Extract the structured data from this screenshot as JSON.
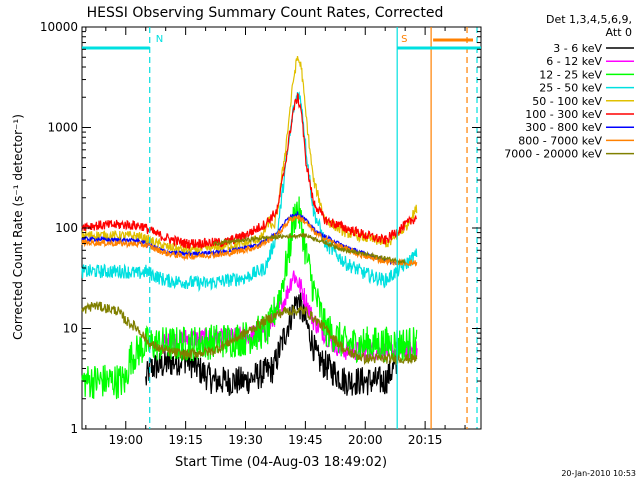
{
  "chart_data": {
    "type": "line",
    "title": "HESSI Observing Summary Count Rates, Corrected",
    "xlabel": "Start Time (04-Aug-03 18:49:02)",
    "ylabel": "Corrected Count Rate (s⁻¹ detector⁻¹)",
    "y_scale": "log",
    "ylim": [
      1,
      10000
    ],
    "xlim": [
      "18:49:02",
      "20:29:00"
    ],
    "x_ticks": [
      "19:00",
      "19:15",
      "19:30",
      "19:45",
      "20:00",
      "20:15"
    ],
    "y_ticks": [
      "1",
      "10",
      "100",
      "1000",
      "10000"
    ],
    "legend_header": "Det 1,3,4,5,6,9,",
    "legend_subheader": "Att 0",
    "timestamp": "20-Jan-2010 10:53",
    "flags": [
      {
        "label": "N",
        "start": "18:49:02",
        "end": "19:06:00",
        "color": "#00e0e0"
      },
      {
        "label": "S",
        "start": "20:08:00",
        "end": "20:29:00",
        "color": "#00e0e0"
      },
      {
        "label": "",
        "start": "20:17:00",
        "end": "20:27:00",
        "color": "#ff8000"
      }
    ],
    "markers": [
      {
        "time": "19:06:00",
        "color": "#00e0e0",
        "style": "dashed"
      },
      {
        "time": "20:08:00",
        "color": "#00e0e0",
        "style": "solid"
      },
      {
        "time": "20:28:00",
        "color": "#00e0e0",
        "style": "dashed"
      },
      {
        "time": "20:16:30",
        "color": "#ff8000",
        "style": "solid"
      },
      {
        "time": "20:25:30",
        "color": "#ff8000",
        "style": "dashed"
      }
    ],
    "series": [
      {
        "name": "3 - 6 keV",
        "color": "#000000",
        "noise": 0.15,
        "points": [
          [
            "19:05",
            3
          ],
          [
            "19:06",
            4
          ],
          [
            "19:15",
            5
          ],
          [
            "19:22",
            3
          ],
          [
            "19:30",
            3
          ],
          [
            "19:37",
            4
          ],
          [
            "19:41",
            12
          ],
          [
            "19:43",
            20
          ],
          [
            "19:45",
            12
          ],
          [
            "19:48",
            5
          ],
          [
            "19:55",
            3
          ],
          [
            "20:05",
            3
          ],
          [
            "20:07",
            4
          ],
          [
            "20:08",
            4
          ]
        ]
      },
      {
        "name": "6 - 12 keV",
        "color": "#ff00ff",
        "noise": 0.1,
        "points": [
          [
            "19:09",
            7
          ],
          [
            "19:15",
            8
          ],
          [
            "19:25",
            8
          ],
          [
            "19:35",
            9
          ],
          [
            "19:40",
            20
          ],
          [
            "19:42",
            35
          ],
          [
            "19:44",
            25
          ],
          [
            "19:47",
            12
          ],
          [
            "19:52",
            7
          ],
          [
            "19:55",
            6
          ],
          [
            "20:05",
            6
          ],
          [
            "20:13",
            6
          ]
        ]
      },
      {
        "name": "12 - 25 keV",
        "color": "#00ff00",
        "noise": 0.18,
        "points": [
          [
            "18:49:02",
            3
          ],
          [
            "19:00",
            3
          ],
          [
            "19:01",
            5
          ],
          [
            "19:05",
            7
          ],
          [
            "19:15",
            7
          ],
          [
            "19:30",
            8
          ],
          [
            "19:36",
            10
          ],
          [
            "19:39",
            25
          ],
          [
            "19:41",
            60
          ],
          [
            "19:42",
            120
          ],
          [
            "19:43",
            160
          ],
          [
            "19:44",
            110
          ],
          [
            "19:45",
            60
          ],
          [
            "19:47",
            25
          ],
          [
            "19:50",
            10
          ],
          [
            "19:55",
            7
          ],
          [
            "20:05",
            7
          ],
          [
            "20:13",
            7
          ]
        ]
      },
      {
        "name": "25 - 50 keV",
        "color": "#00e0e0",
        "noise": 0.07,
        "points": [
          [
            "18:49:02",
            37
          ],
          [
            "19:00",
            37
          ],
          [
            "19:03",
            35
          ],
          [
            "19:05",
            37
          ],
          [
            "19:10",
            30
          ],
          [
            "19:20",
            28
          ],
          [
            "19:30",
            32
          ],
          [
            "19:35",
            40
          ],
          [
            "19:38",
            90
          ],
          [
            "19:40",
            400
          ],
          [
            "19:42",
            1500
          ],
          [
            "19:43",
            2200
          ],
          [
            "19:44",
            1800
          ],
          [
            "19:45",
            700
          ],
          [
            "19:47",
            150
          ],
          [
            "19:50",
            70
          ],
          [
            "19:55",
            45
          ],
          [
            "20:00",
            35
          ],
          [
            "20:05",
            30
          ],
          [
            "20:09",
            40
          ],
          [
            "20:13",
            55
          ]
        ]
      },
      {
        "name": "50 - 100 keV",
        "color": "#e0c000",
        "noise": 0.05,
        "points": [
          [
            "18:49:02",
            85
          ],
          [
            "19:03",
            83
          ],
          [
            "19:06",
            75
          ],
          [
            "19:10",
            65
          ],
          [
            "19:15",
            60
          ],
          [
            "19:20",
            62
          ],
          [
            "19:30",
            70
          ],
          [
            "19:34",
            80
          ],
          [
            "19:36",
            120
          ],
          [
            "19:37",
            95
          ],
          [
            "19:38",
            150
          ],
          [
            "19:40",
            600
          ],
          [
            "19:42",
            3000
          ],
          [
            "19:43",
            5000
          ],
          [
            "19:44",
            4000
          ],
          [
            "19:45",
            1500
          ],
          [
            "19:47",
            300
          ],
          [
            "19:50",
            120
          ],
          [
            "19:55",
            90
          ],
          [
            "20:00",
            80
          ],
          [
            "20:06",
            70
          ],
          [
            "20:10",
            100
          ],
          [
            "20:13",
            160
          ]
        ]
      },
      {
        "name": "100 - 300 keV",
        "color": "#ff0000",
        "noise": 0.05,
        "points": [
          [
            "18:49:02",
            105
          ],
          [
            "19:00",
            108
          ],
          [
            "19:04",
            105
          ],
          [
            "19:07",
            90
          ],
          [
            "19:10",
            80
          ],
          [
            "19:15",
            70
          ],
          [
            "19:25",
            72
          ],
          [
            "19:30",
            85
          ],
          [
            "19:35",
            110
          ],
          [
            "19:38",
            150
          ],
          [
            "19:40",
            450
          ],
          [
            "19:42",
            1500
          ],
          [
            "19:43",
            2000
          ],
          [
            "19:44",
            1500
          ],
          [
            "19:45",
            500
          ],
          [
            "19:47",
            180
          ],
          [
            "19:50",
            120
          ],
          [
            "19:55",
            100
          ],
          [
            "20:00",
            85
          ],
          [
            "20:05",
            75
          ],
          [
            "20:09",
            100
          ],
          [
            "20:13",
            130
          ]
        ]
      },
      {
        "name": "300 - 800 keV",
        "color": "#0000ff",
        "noise": 0.02,
        "points": [
          [
            "18:49:02",
            78
          ],
          [
            "19:03",
            75
          ],
          [
            "19:05",
            70
          ],
          [
            "19:10",
            58
          ],
          [
            "19:15",
            55
          ],
          [
            "19:25",
            58
          ],
          [
            "19:33",
            68
          ],
          [
            "19:38",
            90
          ],
          [
            "19:41",
            130
          ],
          [
            "19:43",
            140
          ],
          [
            "19:45",
            120
          ],
          [
            "19:48",
            90
          ],
          [
            "19:55",
            65
          ],
          [
            "20:00",
            55
          ],
          [
            "20:05",
            48
          ],
          [
            "20:08",
            44
          ]
        ]
      },
      {
        "name": "800 - 7000 keV",
        "color": "#ff8000",
        "noise": 0.03,
        "points": [
          [
            "18:49:02",
            72
          ],
          [
            "19:00",
            70
          ],
          [
            "19:05",
            68
          ],
          [
            "19:10",
            56
          ],
          [
            "19:15",
            52
          ],
          [
            "19:25",
            55
          ],
          [
            "19:33",
            65
          ],
          [
            "19:38",
            85
          ],
          [
            "19:41",
            120
          ],
          [
            "19:43",
            130
          ],
          [
            "19:45",
            115
          ],
          [
            "19:48",
            85
          ],
          [
            "19:55",
            62
          ],
          [
            "20:00",
            52
          ],
          [
            "20:05",
            47
          ],
          [
            "20:10",
            45
          ],
          [
            "20:13",
            45
          ]
        ]
      },
      {
        "name": "7000 - 20000 keV",
        "color": "#808000",
        "noise": 0.05,
        "points": [
          [
            "18:49:02",
            15
          ],
          [
            "18:52",
            17
          ],
          [
            "18:58",
            15
          ],
          [
            "19:00",
            12
          ],
          [
            "19:03",
            10
          ],
          [
            "19:06",
            7
          ],
          [
            "19:10",
            6
          ],
          [
            "19:15",
            5.5
          ],
          [
            "19:22",
            6
          ],
          [
            "19:30",
            9
          ],
          [
            "19:35",
            12
          ],
          [
            "19:40",
            15
          ],
          [
            "19:45",
            15
          ],
          [
            "19:50",
            10
          ],
          [
            "19:55",
            6
          ],
          [
            "20:00",
            5
          ],
          [
            "20:08",
            5
          ],
          [
            "20:13",
            5
          ]
        ]
      },
      {
        "name": "",
        "color": "#808000",
        "noise": 0.02,
        "points": [
          [
            "19:22",
            70
          ],
          [
            "19:35",
            80
          ],
          [
            "19:45",
            85
          ],
          [
            "19:55",
            60
          ],
          [
            "20:05",
            50
          ],
          [
            "20:10",
            46
          ]
        ]
      }
    ]
  }
}
